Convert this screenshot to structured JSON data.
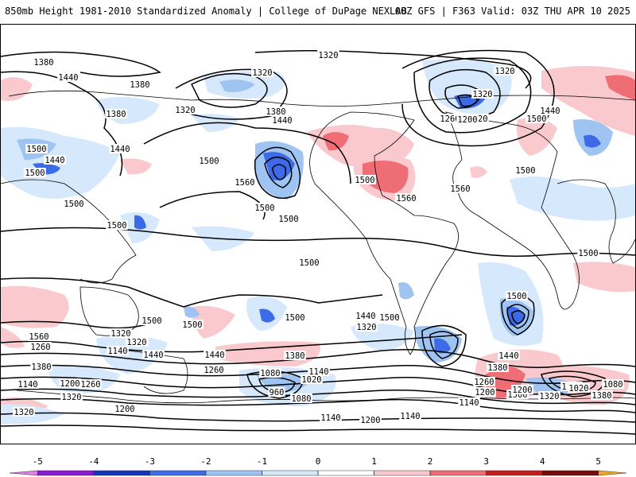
{
  "header": {
    "title_left": "850mb Height 1981-2010 Standardized Anomaly | College of DuPage NEXLAB",
    "title_right": "00Z GFS | F363 Valid: 03Z THU APR 10 2025"
  },
  "colorbar": {
    "min": -5.5,
    "max": 5.5,
    "tick_labels": [
      "-5",
      "-4",
      "-3",
      "-2",
      "-1",
      "0",
      "1",
      "2",
      "3",
      "4",
      "5"
    ],
    "bins": [
      {
        "from": -5.5,
        "to": -5,
        "color": "#e080e8"
      },
      {
        "from": -5,
        "to": -4,
        "color": "#8a1ad0"
      },
      {
        "from": -4,
        "to": -3,
        "color": "#1535b8"
      },
      {
        "from": -3,
        "to": -2,
        "color": "#3d6ae6"
      },
      {
        "from": -2,
        "to": -1,
        "color": "#9fc4f2"
      },
      {
        "from": -1,
        "to": 0,
        "color": "#d6e8fb"
      },
      {
        "from": 0,
        "to": 1,
        "color": "#ffffff"
      },
      {
        "from": 1,
        "to": 2,
        "color": "#f9c9cd"
      },
      {
        "from": 2,
        "to": 3,
        "color": "#ef6e75"
      },
      {
        "from": 3,
        "to": 4,
        "color": "#c31f1f"
      },
      {
        "from": 4,
        "to": 5,
        "color": "#7a0a0a"
      },
      {
        "from": 5,
        "to": 5.5,
        "color": "#f4a623"
      }
    ]
  },
  "contour_labels": [
    "1380",
    "1320",
    "1320",
    "1440",
    "1380",
    "1320",
    "1260",
    "1320",
    "1320",
    "1380",
    "1320",
    "1440",
    "1380",
    "1440",
    "1500",
    "1200",
    "1500",
    "1440",
    "1440",
    "1500",
    "1500",
    "1500",
    "1560",
    "1500",
    "1500",
    "1560",
    "1500",
    "1500",
    "1560",
    "1500",
    "1500",
    "1500",
    "1500",
    "1500",
    "1500",
    "1500",
    "1500",
    "1560",
    "1440",
    "1260",
    "1380",
    "1320",
    "1200",
    "1140",
    "1440",
    "1260",
    "1140",
    "1200",
    "1260",
    "1320",
    "1080",
    "1020",
    "1140",
    "960",
    "1080",
    "1140",
    "1200",
    "1320",
    "1140",
    "1440",
    "1380",
    "1500",
    "1200",
    "1260",
    "1320",
    "1380",
    "1200",
    "1140",
    "1020",
    "1080",
    "1380",
    "1320",
    "1440",
    "1320",
    "1200",
    "1140"
  ]
}
